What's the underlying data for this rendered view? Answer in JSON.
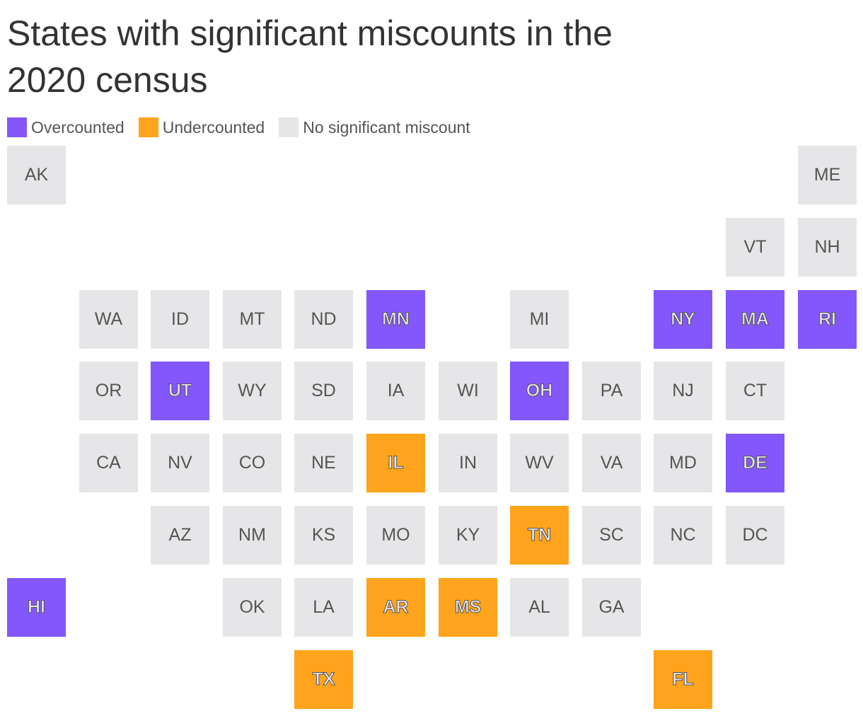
{
  "title": "States with significant miscounts in the 2020 census",
  "colors": {
    "over": "#8357fb",
    "under": "#ffa41c",
    "none": "#e6e6e8"
  },
  "legend": [
    {
      "label": "Overcounted",
      "status": "over"
    },
    {
      "label": "Undercounted",
      "status": "under"
    },
    {
      "label": "No significant miscount",
      "status": "none"
    }
  ],
  "states": [
    {
      "abbr": "AK",
      "row": 0,
      "col": 0,
      "status": "none"
    },
    {
      "abbr": "ME",
      "row": 0,
      "col": 11,
      "status": "none"
    },
    {
      "abbr": "VT",
      "row": 1,
      "col": 10,
      "status": "none"
    },
    {
      "abbr": "NH",
      "row": 1,
      "col": 11,
      "status": "none"
    },
    {
      "abbr": "WA",
      "row": 2,
      "col": 1,
      "status": "none"
    },
    {
      "abbr": "ID",
      "row": 2,
      "col": 2,
      "status": "none"
    },
    {
      "abbr": "MT",
      "row": 2,
      "col": 3,
      "status": "none"
    },
    {
      "abbr": "ND",
      "row": 2,
      "col": 4,
      "status": "none"
    },
    {
      "abbr": "MN",
      "row": 2,
      "col": 5,
      "status": "over"
    },
    {
      "abbr": "MI",
      "row": 2,
      "col": 7,
      "status": "none"
    },
    {
      "abbr": "NY",
      "row": 2,
      "col": 9,
      "status": "over"
    },
    {
      "abbr": "MA",
      "row": 2,
      "col": 10,
      "status": "over"
    },
    {
      "abbr": "RI",
      "row": 2,
      "col": 11,
      "status": "over"
    },
    {
      "abbr": "OR",
      "row": 3,
      "col": 1,
      "status": "none"
    },
    {
      "abbr": "UT",
      "row": 3,
      "col": 2,
      "status": "over"
    },
    {
      "abbr": "WY",
      "row": 3,
      "col": 3,
      "status": "none"
    },
    {
      "abbr": "SD",
      "row": 3,
      "col": 4,
      "status": "none"
    },
    {
      "abbr": "IA",
      "row": 3,
      "col": 5,
      "status": "none"
    },
    {
      "abbr": "WI",
      "row": 3,
      "col": 6,
      "status": "none"
    },
    {
      "abbr": "OH",
      "row": 3,
      "col": 7,
      "status": "over"
    },
    {
      "abbr": "PA",
      "row": 3,
      "col": 8,
      "status": "none"
    },
    {
      "abbr": "NJ",
      "row": 3,
      "col": 9,
      "status": "none"
    },
    {
      "abbr": "CT",
      "row": 3,
      "col": 10,
      "status": "none"
    },
    {
      "abbr": "CA",
      "row": 4,
      "col": 1,
      "status": "none"
    },
    {
      "abbr": "NV",
      "row": 4,
      "col": 2,
      "status": "none"
    },
    {
      "abbr": "CO",
      "row": 4,
      "col": 3,
      "status": "none"
    },
    {
      "abbr": "NE",
      "row": 4,
      "col": 4,
      "status": "none"
    },
    {
      "abbr": "IL",
      "row": 4,
      "col": 5,
      "status": "under"
    },
    {
      "abbr": "IN",
      "row": 4,
      "col": 6,
      "status": "none"
    },
    {
      "abbr": "WV",
      "row": 4,
      "col": 7,
      "status": "none"
    },
    {
      "abbr": "VA",
      "row": 4,
      "col": 8,
      "status": "none"
    },
    {
      "abbr": "MD",
      "row": 4,
      "col": 9,
      "status": "none"
    },
    {
      "abbr": "DE",
      "row": 4,
      "col": 10,
      "status": "over"
    },
    {
      "abbr": "AZ",
      "row": 5,
      "col": 2,
      "status": "none"
    },
    {
      "abbr": "NM",
      "row": 5,
      "col": 3,
      "status": "none"
    },
    {
      "abbr": "KS",
      "row": 5,
      "col": 4,
      "status": "none"
    },
    {
      "abbr": "MO",
      "row": 5,
      "col": 5,
      "status": "none"
    },
    {
      "abbr": "KY",
      "row": 5,
      "col": 6,
      "status": "none"
    },
    {
      "abbr": "TN",
      "row": 5,
      "col": 7,
      "status": "under"
    },
    {
      "abbr": "SC",
      "row": 5,
      "col": 8,
      "status": "none"
    },
    {
      "abbr": "NC",
      "row": 5,
      "col": 9,
      "status": "none"
    },
    {
      "abbr": "DC",
      "row": 5,
      "col": 10,
      "status": "none"
    },
    {
      "abbr": "HI",
      "row": 6,
      "col": 0,
      "status": "over"
    },
    {
      "abbr": "OK",
      "row": 6,
      "col": 3,
      "status": "none"
    },
    {
      "abbr": "LA",
      "row": 6,
      "col": 4,
      "status": "none"
    },
    {
      "abbr": "AR",
      "row": 6,
      "col": 5,
      "status": "under"
    },
    {
      "abbr": "MS",
      "row": 6,
      "col": 6,
      "status": "under"
    },
    {
      "abbr": "AL",
      "row": 6,
      "col": 7,
      "status": "none"
    },
    {
      "abbr": "GA",
      "row": 6,
      "col": 8,
      "status": "none"
    },
    {
      "abbr": "TX",
      "row": 7,
      "col": 4,
      "status": "under"
    },
    {
      "abbr": "FL",
      "row": 7,
      "col": 9,
      "status": "under"
    }
  ]
}
